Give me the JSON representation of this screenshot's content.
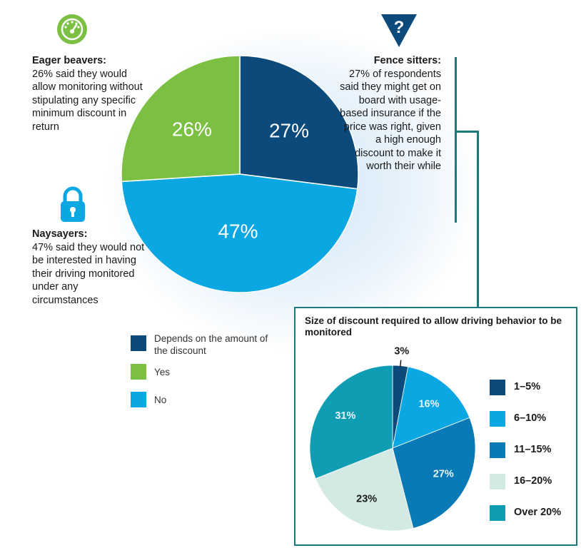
{
  "main": {
    "callouts": {
      "eager": {
        "heading": "Eager beavers:",
        "body": "26% said they would allow monitoring without stipulating any specific minimum discount in return"
      },
      "naysayers": {
        "heading": "Naysayers:",
        "body": "47% said they would not be interested in having their driving monitored under any circumstances"
      },
      "fence": {
        "heading": "Fence sitters:",
        "body": "27% of respondents said they might get on board with usage-based insurance if the price was right, given a high enough discount to make it worth their while"
      }
    },
    "icons": {
      "eager": "speedometer-icon",
      "naysayers": "lock-icon",
      "fence": "question-mark-icon"
    },
    "legend": [
      {
        "label": "Depends on the amount of the discount",
        "color": "#0b4a7a"
      },
      {
        "label": "Yes",
        "color": "#7bc043"
      },
      {
        "label": "No",
        "color": "#0aa7e2"
      }
    ]
  },
  "box": {
    "title": "Size of discount required to allow driving behavior to be monitored"
  },
  "chart_data": [
    {
      "type": "pie",
      "categories": [
        "Depends on the amount of the discount",
        "No",
        "Yes"
      ],
      "values": [
        27,
        47,
        26
      ],
      "data_labels": [
        "27%",
        "47%",
        "26%"
      ],
      "colors": [
        "#0b4a7a",
        "#0aa7e2",
        "#7bc043"
      ]
    },
    {
      "type": "pie",
      "title": "Size of discount required to allow driving behavior to be monitored",
      "categories": [
        "1–5%",
        "6–10%",
        "11–15%",
        "16–20%",
        "Over 20%"
      ],
      "values": [
        3,
        16,
        27,
        23,
        31
      ],
      "data_labels": [
        "3%",
        "16%",
        "27%",
        "23%",
        "31%"
      ],
      "colors": [
        "#0b4a7a",
        "#0aa7e2",
        "#0a7ab6",
        "#d2e9e4",
        "#0e9db3"
      ],
      "legend_position": "right"
    }
  ]
}
